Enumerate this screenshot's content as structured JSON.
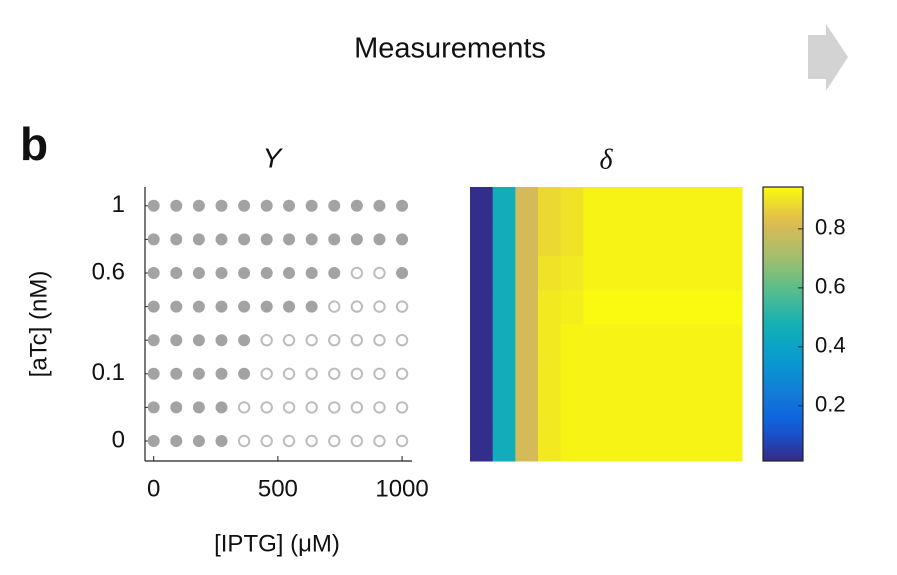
{
  "header": "Measurements",
  "panel_label": "b",
  "chart_data": [
    {
      "type": "dot-grid",
      "title": "Y",
      "x_label": "[IPTG] (μM)",
      "y_label": "[aTc] (nM)",
      "x": [
        0,
        91,
        182,
        273,
        364,
        455,
        545,
        636,
        727,
        818,
        909,
        1000
      ],
      "xlim": [
        -35,
        1040
      ],
      "xticks": [
        0,
        500,
        1000
      ],
      "y_categories": [
        "0",
        null,
        "0.1",
        null,
        null,
        "0.6",
        null,
        "1"
      ],
      "color": "#a3a3a3",
      "hollow_color": "#bdbdbd",
      "values": [
        [
          1,
          1,
          1,
          1,
          0,
          0,
          0,
          0,
          0,
          0,
          0,
          0
        ],
        [
          1,
          1,
          1,
          1,
          0,
          0,
          0,
          0,
          0,
          0,
          0,
          0
        ],
        [
          1,
          1,
          1,
          1,
          1,
          0,
          0,
          0,
          0,
          0,
          0,
          0
        ],
        [
          1,
          1,
          1,
          1,
          1,
          0,
          0,
          0,
          0,
          0,
          0,
          0
        ],
        [
          1,
          1,
          1,
          1,
          1,
          1,
          1,
          1,
          0,
          0,
          0,
          0
        ],
        [
          1,
          1,
          1,
          1,
          1,
          1,
          1,
          1,
          1,
          0,
          0,
          1
        ],
        [
          1,
          1,
          1,
          1,
          1,
          1,
          1,
          1,
          1,
          1,
          1,
          1
        ],
        [
          1,
          1,
          1,
          1,
          1,
          1,
          1,
          1,
          1,
          1,
          1,
          1
        ]
      ]
    },
    {
      "type": "heatmap",
      "title": "δ",
      "colormap": "parula",
      "clim": [
        0.013,
        0.942
      ],
      "colorbar_ticks": [
        0.2,
        0.4,
        0.6,
        0.8
      ],
      "values": [
        [
          0.02,
          0.45,
          0.8,
          0.91,
          0.93,
          0.93,
          0.93,
          0.93,
          0.93,
          0.93,
          0.93,
          0.93
        ],
        [
          0.02,
          0.45,
          0.8,
          0.91,
          0.93,
          0.93,
          0.93,
          0.93,
          0.93,
          0.93,
          0.93,
          0.93
        ],
        [
          0.02,
          0.45,
          0.8,
          0.91,
          0.93,
          0.93,
          0.93,
          0.93,
          0.93,
          0.93,
          0.93,
          0.93
        ],
        [
          0.02,
          0.45,
          0.8,
          0.91,
          0.93,
          0.93,
          0.93,
          0.93,
          0.93,
          0.93,
          0.93,
          0.93
        ],
        [
          0.02,
          0.45,
          0.8,
          0.91,
          0.92,
          0.94,
          0.94,
          0.94,
          0.94,
          0.94,
          0.94,
          0.94
        ],
        [
          0.02,
          0.45,
          0.8,
          0.9,
          0.91,
          0.93,
          0.93,
          0.93,
          0.93,
          0.93,
          0.93,
          0.93
        ],
        [
          0.02,
          0.45,
          0.8,
          0.88,
          0.9,
          0.93,
          0.93,
          0.93,
          0.93,
          0.93,
          0.93,
          0.93
        ],
        [
          0.02,
          0.45,
          0.8,
          0.88,
          0.9,
          0.93,
          0.93,
          0.93,
          0.93,
          0.93,
          0.93,
          0.93
        ]
      ]
    }
  ]
}
